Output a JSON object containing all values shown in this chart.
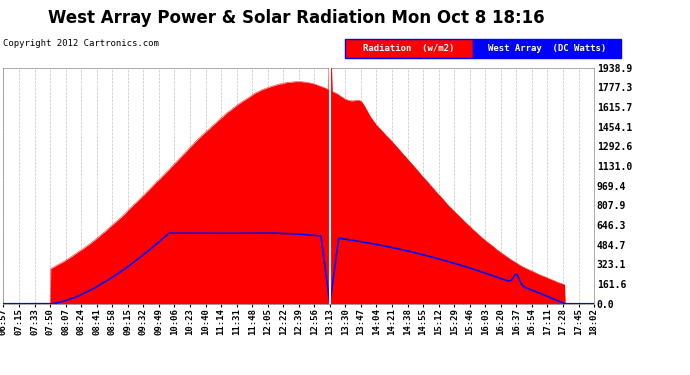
{
  "title": "West Array Power & Solar Radiation Mon Oct 8 18:16",
  "copyright": "Copyright 2012 Cartronics.com",
  "legend_radiation": "Radiation  (w/m2)",
  "legend_west": "West Array  (DC Watts)",
  "radiation_color": "#FF0000",
  "west_color": "#0000FF",
  "background_color": "#FFFFFF",
  "plot_bg_color": "#FFFFFF",
  "grid_color": "#AAAAAA",
  "yticks": [
    0.0,
    161.6,
    323.1,
    484.7,
    646.3,
    807.9,
    969.4,
    1131.0,
    1292.6,
    1454.1,
    1615.7,
    1777.3,
    1938.9
  ],
  "ytick_labels": [
    "0.0",
    "161.6",
    "323.1",
    "484.7",
    "646.3",
    "807.9",
    "969.4",
    "1131.0",
    "1292.6",
    "1454.1",
    "1615.7",
    "1777.3",
    "1938.9"
  ],
  "ylim": [
    0,
    1938.9
  ],
  "time_labels": [
    "06:57",
    "07:15",
    "07:33",
    "07:50",
    "08:07",
    "08:24",
    "08:41",
    "08:58",
    "09:15",
    "09:32",
    "09:49",
    "10:06",
    "10:23",
    "10:40",
    "11:14",
    "11:31",
    "11:48",
    "12:05",
    "12:22",
    "12:39",
    "12:56",
    "13:13",
    "13:30",
    "13:47",
    "14:04",
    "14:21",
    "14:38",
    "14:55",
    "15:12",
    "15:29",
    "15:46",
    "16:03",
    "16:20",
    "16:37",
    "16:54",
    "17:11",
    "17:28",
    "17:45",
    "18:02"
  ],
  "title_fontsize": 12,
  "label_fontsize": 6.5,
  "copyright_fontsize": 6.5,
  "n_points": 1000
}
